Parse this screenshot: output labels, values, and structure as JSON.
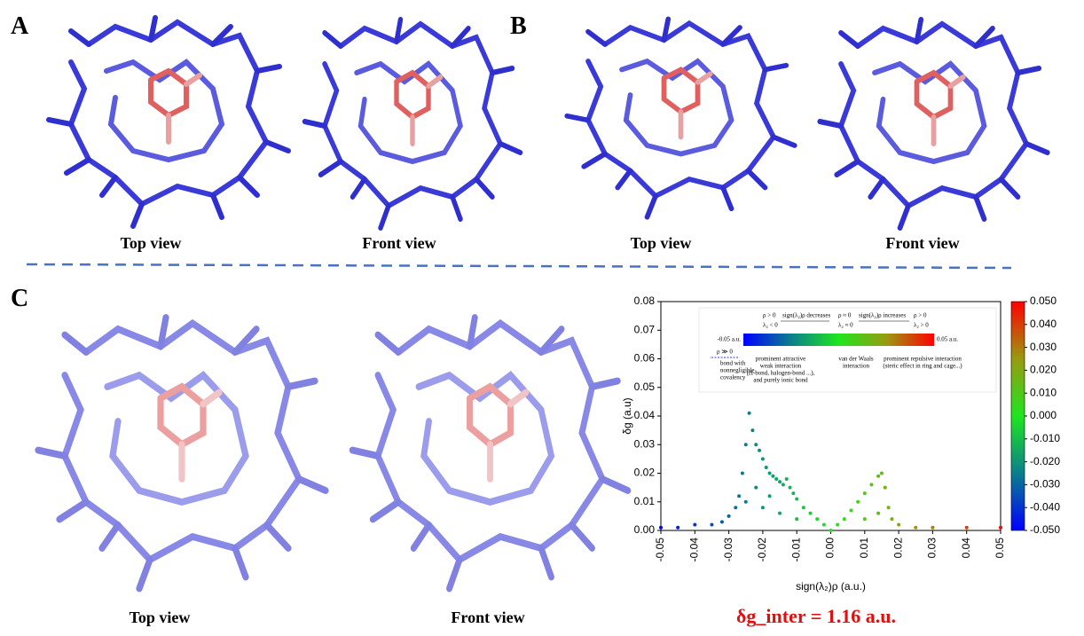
{
  "panels": {
    "A": {
      "label": "A",
      "captions": [
        "Top view",
        "Front view"
      ]
    },
    "B": {
      "label": "B",
      "captions": [
        "Top view",
        "Front view"
      ]
    },
    "C": {
      "label": "C",
      "captions": [
        "Top view",
        "Front view"
      ]
    }
  },
  "chart_data": {
    "type": "scatter",
    "xlabel": "sign(λ₂)ρ (a.u.)",
    "ylabel": "δg (a.u)",
    "x": [
      -0.05,
      -0.045,
      -0.04,
      -0.035,
      -0.032,
      -0.03,
      -0.028,
      -0.027,
      -0.026,
      -0.025,
      -0.024,
      -0.023,
      -0.022,
      -0.021,
      -0.02,
      -0.019,
      -0.018,
      -0.017,
      -0.016,
      -0.015,
      -0.014,
      -0.013,
      -0.012,
      -0.011,
      -0.01,
      -0.008,
      -0.006,
      -0.004,
      -0.002,
      0,
      0.002,
      0.004,
      0.006,
      0.008,
      0.01,
      0.012,
      0.014,
      0.015,
      0.016,
      0.017,
      0.018,
      0.02,
      0.025,
      0.03,
      0.04,
      0.05,
      -0.025,
      -0.02,
      -0.015,
      -0.01,
      0.01,
      0.014,
      -0.022,
      -0.018
    ],
    "values": [
      0.001,
      0.001,
      0.002,
      0.002,
      0.003,
      0.005,
      0.008,
      0.012,
      0.02,
      0.03,
      0.041,
      0.035,
      0.03,
      0.028,
      0.025,
      0.022,
      0.02,
      0.019,
      0.018,
      0.017,
      0.016,
      0.018,
      0.015,
      0.013,
      0.011,
      0.008,
      0.006,
      0.004,
      0.002,
      0,
      0.002,
      0.004,
      0.007,
      0.01,
      0.013,
      0.016,
      0.019,
      0.02,
      0.015,
      0.008,
      0.004,
      0.002,
      0.001,
      0.001,
      0.001,
      0.001,
      0.01,
      0.008,
      0.006,
      0.004,
      0.004,
      0.006,
      0.015,
      0.012
    ],
    "xlim": [
      -0.05,
      0.05
    ],
    "ylim": [
      0,
      0.08
    ],
    "xticks": [
      -0.05,
      -0.04,
      -0.03,
      -0.02,
      -0.01,
      {
        "value": 0,
        "label": "0.00"
      },
      0.01,
      0.02,
      0.03,
      0.04,
      0.05
    ],
    "yticks": [
      {
        "value": 0,
        "label": "0.00"
      },
      0.01,
      0.02,
      0.03,
      0.04,
      0.05,
      0.06,
      0.07,
      0.08
    ],
    "colorbar": {
      "lim": [
        -0.05,
        0.05
      ],
      "ticks": [
        {
          "value": 0.05,
          "label": "0.050"
        },
        {
          "value": 0.04,
          "label": "0.040"
        },
        {
          "value": 0.03,
          "label": "0.030"
        },
        {
          "value": 0.02,
          "label": "0.020"
        },
        {
          "value": 0.01,
          "label": "0.010"
        },
        {
          "value": 0,
          "label": "0.000"
        },
        {
          "value": -0.01,
          "label": "-0.010"
        },
        {
          "value": -0.02,
          "label": "-0.020"
        },
        {
          "value": -0.03,
          "label": "-0.030"
        },
        {
          "value": -0.04,
          "label": "-0.040"
        },
        {
          "value": -0.05,
          "label": "-0.050"
        }
      ],
      "colormap": [
        "#0000ff",
        "#0a7f8c",
        "#1ee61e",
        "#9a9a10",
        "#ff0000"
      ]
    },
    "inset": {
      "left_end": "-0.05 a.u.",
      "right_end": "0.05 a.u.",
      "conditions": [
        "ρ > 0",
        "λ₂ < 0",
        "ρ ≈ 0",
        "λ₂ ≈ 0",
        "ρ > 0",
        "λ₂ > 0"
      ],
      "arrows": [
        "sign(λ₂)ρ decreases",
        "sign(λ₂)ρ increases"
      ],
      "covalent": [
        "ρ ≫ 0",
        "bond with",
        "nonnegligible",
        "covalency"
      ],
      "regions": [
        [
          "prominent attractive",
          "weak interaction",
          "(H-bond, halogen-bond ...),",
          "and purely ionic bond"
        ],
        [
          "van der Waals",
          "interaction"
        ],
        [
          "prominent repulsive interaction",
          "(steric effect in ring and cage...)"
        ]
      ]
    },
    "annotation": "δg_inter = 1.16 a.u."
  }
}
